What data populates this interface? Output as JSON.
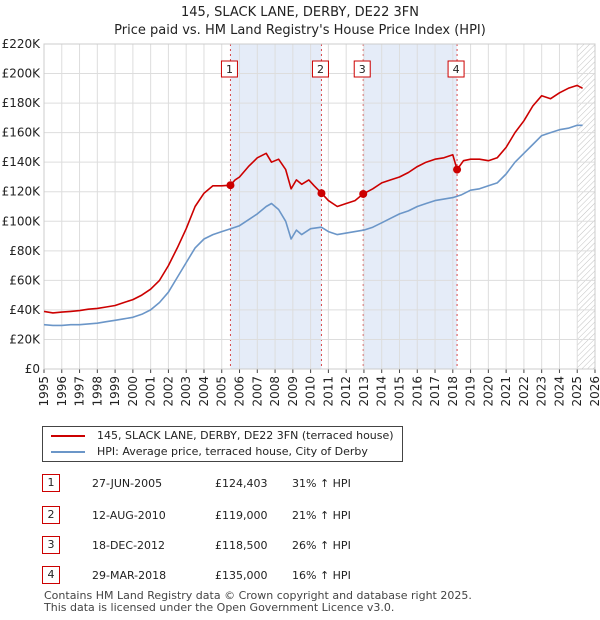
{
  "title": "145, SLACK LANE, DERBY, DE22 3FN",
  "subtitle": "Price paid vs. HM Land Registry's House Price Index (HPI)",
  "colors": {
    "price_line": "#cc0000",
    "hpi_line": "#6b96c8",
    "band": "#dce6f5",
    "marker_border": "#cc0000",
    "grid": "#dddddd",
    "hatch": "#999999"
  },
  "chart_data": {
    "type": "line",
    "title": "145, SLACK LANE, DERBY, DE22 3FN",
    "subtitle": "Price paid vs. HM Land Registry's House Price Index (HPI)",
    "xlabel": "",
    "ylabel": "",
    "xlim": [
      1995,
      2026
    ],
    "ylim": [
      0,
      220000
    ],
    "grid": true,
    "y_ticks": [
      0,
      20000,
      40000,
      60000,
      80000,
      100000,
      120000,
      140000,
      160000,
      180000,
      200000,
      220000
    ],
    "y_tick_labels": [
      "£0",
      "£20K",
      "£40K",
      "£60K",
      "£80K",
      "£100K",
      "£120K",
      "£140K",
      "£160K",
      "£180K",
      "£200K",
      "£220K"
    ],
    "x_ticks": [
      1995,
      1996,
      1997,
      1998,
      1999,
      2000,
      2001,
      2002,
      2003,
      2004,
      2005,
      2006,
      2007,
      2008,
      2009,
      2010,
      2011,
      2012,
      2013,
      2014,
      2015,
      2016,
      2017,
      2018,
      2019,
      2020,
      2021,
      2022,
      2023,
      2024,
      2025,
      2026
    ],
    "x_tick_labels": [
      "1995",
      "1996",
      "1997",
      "1998",
      "1999",
      "2000",
      "2001",
      "2002",
      "2003",
      "2004",
      "2005",
      "2006",
      "2007",
      "2008",
      "2009",
      "2010",
      "2011",
      "2012",
      "2013",
      "2014",
      "2015",
      "2016",
      "2017",
      "2018",
      "2019",
      "2020",
      "2021",
      "2022",
      "2023",
      "2024",
      "2025",
      "2026"
    ],
    "shaded_ranges": [
      [
        2005.49,
        2010.61
      ],
      [
        2012.96,
        2018.24
      ]
    ],
    "future_start": 2025.0,
    "series": [
      {
        "name": "145, SLACK LANE, DERBY, DE22 3FN (terraced house)",
        "color": "#cc0000",
        "x": [
          1995.0,
          1995.5,
          1996.0,
          1996.5,
          1997.0,
          1997.5,
          1998.0,
          1998.5,
          1999.0,
          1999.5,
          2000.0,
          2000.5,
          2001.0,
          2001.5,
          2002.0,
          2002.5,
          2003.0,
          2003.5,
          2004.0,
          2004.5,
          2005.0,
          2005.49,
          2005.75,
          2006.0,
          2006.5,
          2007.0,
          2007.5,
          2007.8,
          2008.2,
          2008.6,
          2008.9,
          2009.2,
          2009.5,
          2009.9,
          2010.2,
          2010.61,
          2011.0,
          2011.5,
          2012.0,
          2012.5,
          2012.96,
          2013.5,
          2014.0,
          2014.5,
          2015.0,
          2015.5,
          2016.0,
          2016.5,
          2017.0,
          2017.5,
          2018.0,
          2018.24,
          2018.6,
          2019.0,
          2019.5,
          2020.0,
          2020.5,
          2021.0,
          2021.5,
          2022.0,
          2022.5,
          2023.0,
          2023.5,
          2024.0,
          2024.5,
          2025.0,
          2025.3
        ],
        "values": [
          39000,
          38000,
          38500,
          39000,
          39500,
          40500,
          41000,
          42000,
          43000,
          45000,
          47000,
          50000,
          54000,
          60000,
          70000,
          82000,
          95000,
          110000,
          119000,
          124000,
          124000,
          124403,
          128000,
          130000,
          137000,
          143000,
          146000,
          140000,
          142000,
          135000,
          122000,
          128000,
          125000,
          128000,
          124000,
          119000,
          114000,
          110000,
          112000,
          114000,
          118500,
          122000,
          126000,
          128000,
          130000,
          133000,
          137000,
          140000,
          142000,
          143000,
          145000,
          135000,
          141000,
          142000,
          142000,
          141000,
          143000,
          150000,
          160000,
          168000,
          178000,
          185000,
          183000,
          187000,
          190000,
          192000,
          190000
        ]
      },
      {
        "name": "HPI: Average price, terraced house, City of Derby",
        "color": "#6b96c8",
        "x": [
          1995.0,
          1995.5,
          1996.0,
          1996.5,
          1997.0,
          1997.5,
          1998.0,
          1998.5,
          1999.0,
          1999.5,
          2000.0,
          2000.5,
          2001.0,
          2001.5,
          2002.0,
          2002.5,
          2003.0,
          2003.5,
          2004.0,
          2004.5,
          2005.0,
          2005.5,
          2006.0,
          2006.5,
          2007.0,
          2007.5,
          2007.8,
          2008.2,
          2008.6,
          2008.9,
          2009.2,
          2009.5,
          2010.0,
          2010.6,
          2011.0,
          2011.5,
          2012.0,
          2012.5,
          2013.0,
          2013.5,
          2014.0,
          2014.5,
          2015.0,
          2015.5,
          2016.0,
          2016.5,
          2017.0,
          2017.5,
          2018.0,
          2018.5,
          2019.0,
          2019.5,
          2020.0,
          2020.5,
          2021.0,
          2021.5,
          2022.0,
          2022.5,
          2023.0,
          2023.5,
          2024.0,
          2024.5,
          2025.0,
          2025.3
        ],
        "values": [
          30000,
          29500,
          29500,
          30000,
          30000,
          30500,
          31000,
          32000,
          33000,
          34000,
          35000,
          37000,
          40000,
          45000,
          52000,
          62000,
          72000,
          82000,
          88000,
          91000,
          93000,
          95000,
          97000,
          101000,
          105000,
          110000,
          112000,
          108000,
          100000,
          88000,
          94000,
          91000,
          95000,
          96000,
          93000,
          91000,
          92000,
          93000,
          94000,
          96000,
          99000,
          102000,
          105000,
          107000,
          110000,
          112000,
          114000,
          115000,
          116000,
          118000,
          121000,
          122000,
          124000,
          126000,
          132000,
          140000,
          146000,
          152000,
          158000,
          160000,
          162000,
          163000,
          165000,
          165000
        ]
      }
    ],
    "sales": [
      {
        "num": "1",
        "x": 2005.49,
        "value": 124403
      },
      {
        "num": "2",
        "x": 2010.61,
        "value": 119000
      },
      {
        "num": "3",
        "x": 2012.96,
        "value": 118500
      },
      {
        "num": "4",
        "x": 2018.24,
        "value": 135000
      }
    ]
  },
  "legend": {
    "price_label": "145, SLACK LANE, DERBY, DE22 3FN (terraced house)",
    "hpi_label": "HPI: Average price, terraced house, City of Derby"
  },
  "sales_table": [
    {
      "num": "1",
      "date": "27-JUN-2005",
      "price": "£124,403",
      "hpi": "31% ↑ HPI"
    },
    {
      "num": "2",
      "date": "12-AUG-2010",
      "price": "£119,000",
      "hpi": "21% ↑ HPI"
    },
    {
      "num": "3",
      "date": "18-DEC-2012",
      "price": "£118,500",
      "hpi": "26% ↑ HPI"
    },
    {
      "num": "4",
      "date": "29-MAR-2018",
      "price": "£135,000",
      "hpi": "16% ↑ HPI"
    }
  ],
  "footer": {
    "line1": "Contains HM Land Registry data © Crown copyright and database right 2025.",
    "line2": "This data is licensed under the Open Government Licence v3.0."
  }
}
